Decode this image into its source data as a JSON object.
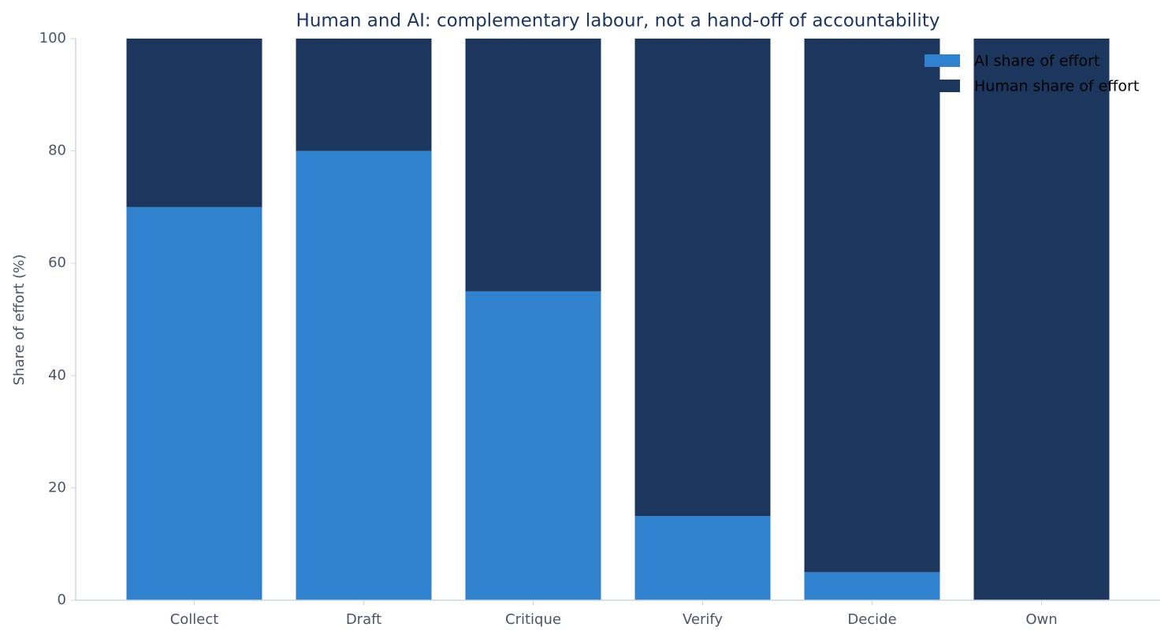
{
  "chart_data": {
    "type": "stacked_bar",
    "title": "Human and AI: complementary labour, not a hand-off of accountability",
    "y_label": "Share of effort (%)",
    "categories": [
      "Collect",
      "Draft",
      "Critique",
      "Verify",
      "Decide",
      "Own"
    ],
    "series": [
      {
        "name": "AI share of effort",
        "color": "#3182ce",
        "values": [
          70,
          80,
          55,
          15,
          5,
          0
        ]
      },
      {
        "name": "Human share of effort",
        "color": "#1c365d",
        "values": [
          30,
          20,
          45,
          85,
          95,
          100
        ]
      }
    ],
    "ylim": [
      0,
      100
    ],
    "yticks": [
      0,
      20,
      40,
      60,
      80,
      100
    ],
    "legend": "upper right"
  }
}
